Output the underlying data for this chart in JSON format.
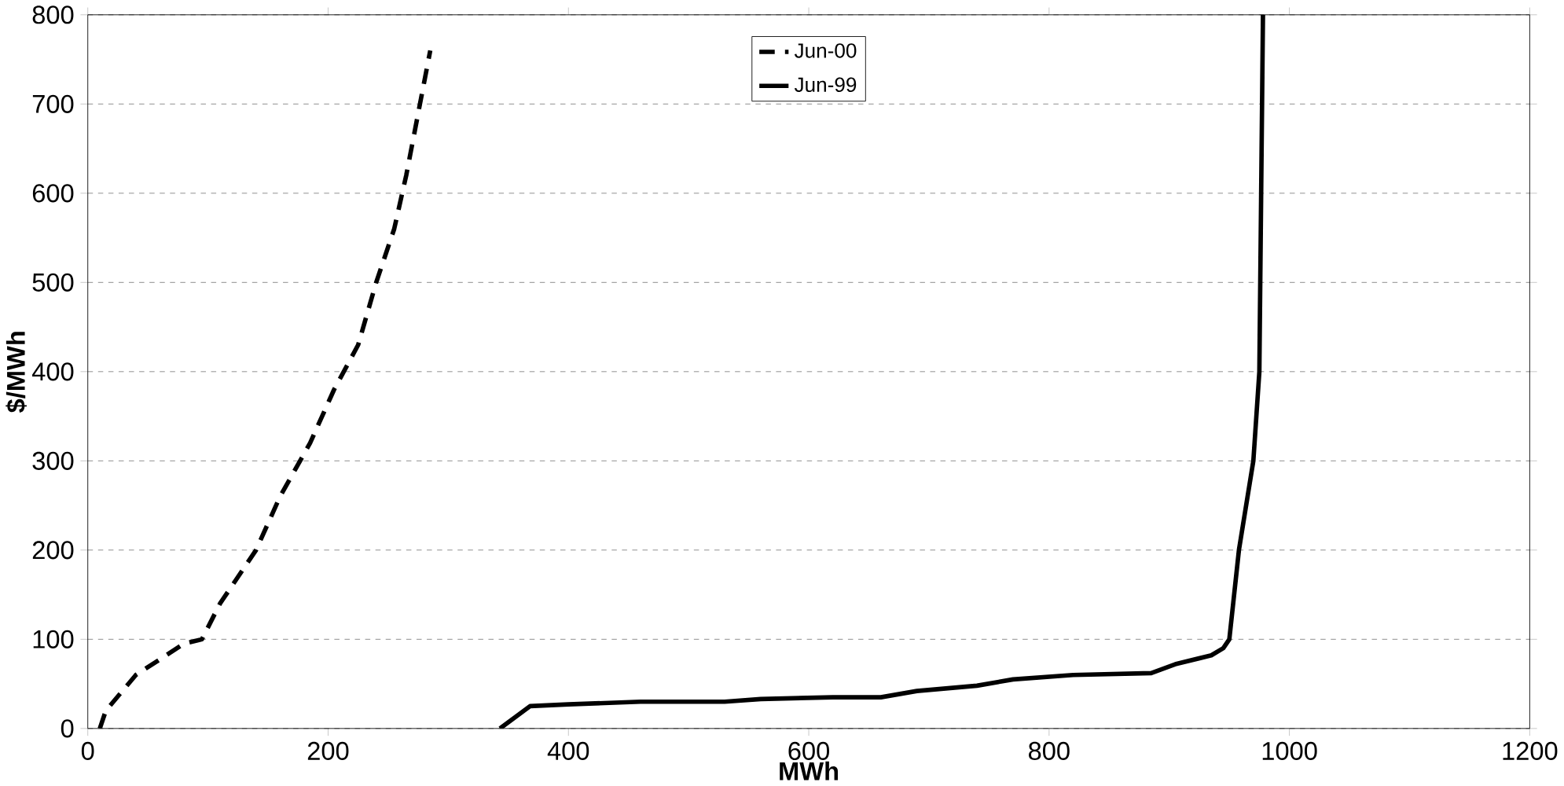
{
  "chart_data": {
    "type": "line",
    "xlabel": "MWh",
    "ylabel": "$/MWh",
    "xlim": [
      0,
      1200
    ],
    "xticks": [
      0,
      200,
      400,
      600,
      800,
      1000,
      1200
    ],
    "ylim": [
      0,
      800
    ],
    "yticks": [
      0,
      100,
      200,
      300,
      400,
      500,
      600,
      700,
      800
    ],
    "grid": "y",
    "legend": "top",
    "marker": "none",
    "series": [
      {
        "name": "Jun-00",
        "color": "#000000",
        "line_style": "dashed",
        "x": [
          10,
          15,
          40,
          80,
          95,
          110,
          140,
          160,
          185,
          205,
          225,
          240,
          255,
          265,
          275,
          285
        ],
        "values": [
          0,
          20,
          60,
          95,
          100,
          140,
          200,
          260,
          320,
          380,
          430,
          500,
          560,
          620,
          690,
          760
        ]
      },
      {
        "name": "Jun-99",
        "color": "#000000",
        "line_style": "solid",
        "x": [
          343,
          368,
          400,
          460,
          530,
          560,
          620,
          660,
          690,
          740,
          770,
          820,
          885,
          905,
          935,
          945,
          950,
          958,
          970,
          975,
          978
        ],
        "values": [
          0,
          25,
          27,
          30,
          30,
          33,
          35,
          35,
          42,
          48,
          55,
          60,
          62,
          72,
          82,
          90,
          100,
          200,
          300,
          400,
          800
        ]
      }
    ]
  }
}
